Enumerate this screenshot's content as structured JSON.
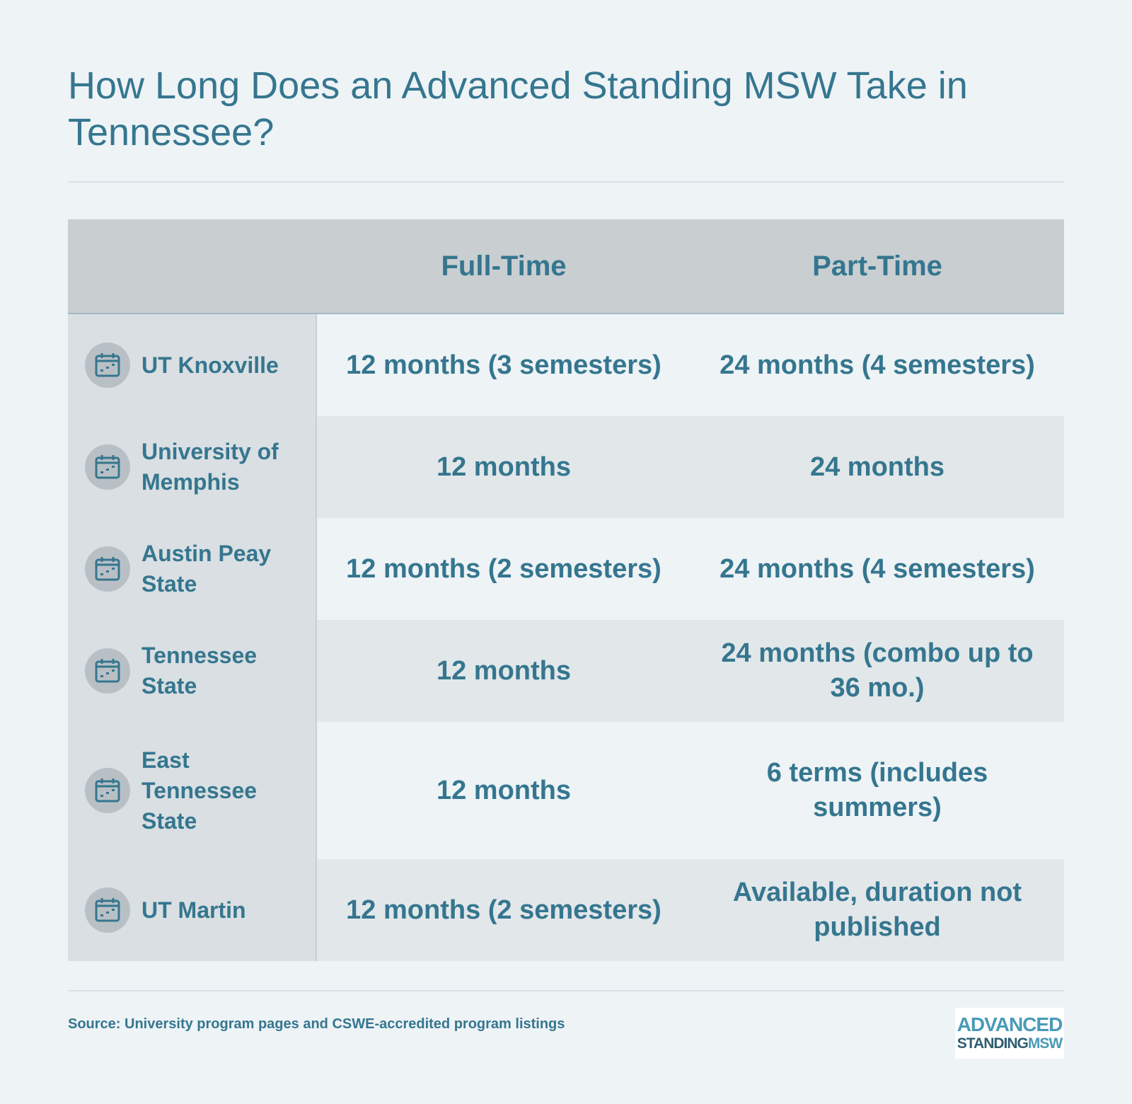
{
  "title": "How Long Does an Advanced Standing MSW Take in Tennessee?",
  "table": {
    "headers": [
      "Full-Time",
      "Part-Time"
    ],
    "rows": [
      {
        "name": "UT Knoxville",
        "full_time": "12 months (3 semesters)",
        "part_time": "24 months (4 semesters)"
      },
      {
        "name": "University of Memphis",
        "full_time": "12 months",
        "part_time": "24 months"
      },
      {
        "name": "Austin Peay State",
        "full_time": "12 months (2 semesters)",
        "part_time": "24 months (4 semesters)"
      },
      {
        "name": "Tennessee State",
        "full_time": "12 months",
        "part_time": "24 months (combo up to 36 mo.)"
      },
      {
        "name": "East Tennessee State",
        "full_time": "12 months",
        "part_time": "6 terms (includes summers)"
      },
      {
        "name": "UT Martin",
        "full_time": "12 months (2 semesters)",
        "part_time": "Available, duration not published"
      }
    ],
    "row_icon": "calendar-icon"
  },
  "source": "Source: University program pages and CSWE-accredited program listings",
  "logo": {
    "line1": "ADVANCED",
    "line2_a": "STANDING",
    "line2_b": "MSW"
  },
  "colors": {
    "accent": "#35768f",
    "background": "#eef3f6",
    "header": "#c9ced1"
  }
}
